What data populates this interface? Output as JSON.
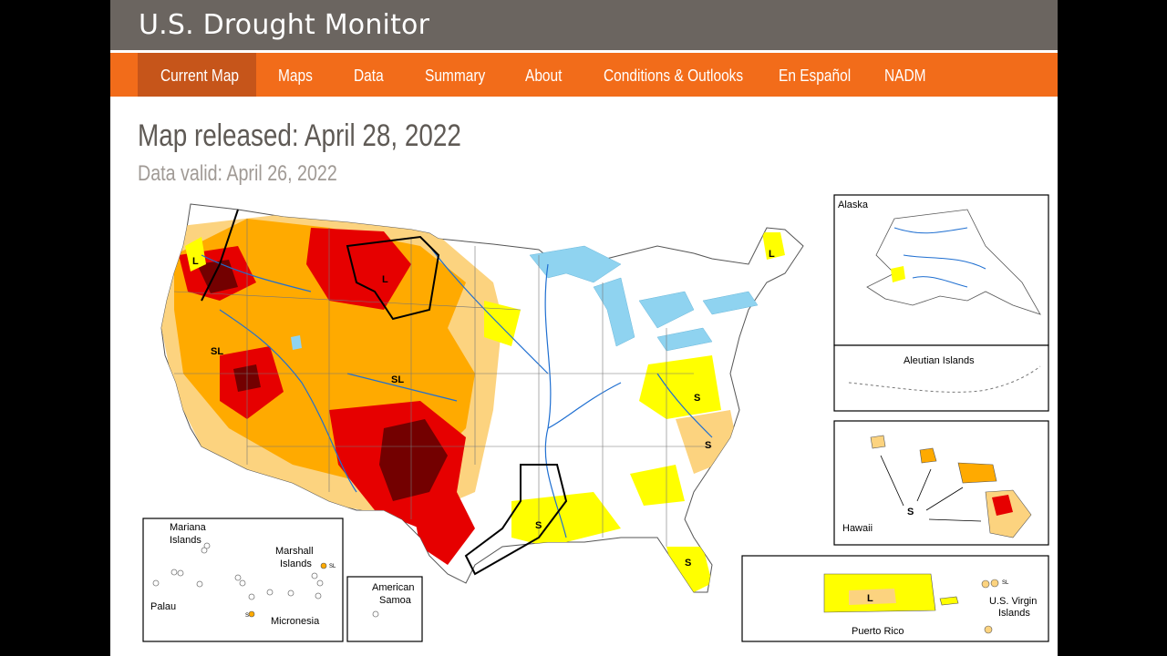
{
  "header": {
    "title": "U.S. Drought Monitor"
  },
  "nav": {
    "items": [
      "Current Map",
      "Maps",
      "Data",
      "Summary",
      "About",
      "Conditions & Outlooks",
      "En Español",
      "NADM"
    ],
    "active": "Current Map"
  },
  "main": {
    "released": "Map released: April 28, 2022",
    "valid": "Data valid: April 26, 2022"
  },
  "map": {
    "impact_labels": {
      "west": "SL",
      "central": "SL",
      "north": "L",
      "northwest": "L",
      "northeast": "L",
      "virginia": "S",
      "carolina": "S",
      "louisiana": "S",
      "florida": "S"
    },
    "insets": {
      "alaska": "Alaska",
      "aleutian": "Aleutian Islands",
      "hawaii": "Hawaii",
      "hawaii_impact": "S",
      "puerto_rico": "Puerto Rico",
      "puerto_rico_impact": "L",
      "usvi": [
        "U.S. Virgin",
        "Islands"
      ],
      "usvi_sl": "SL",
      "mariana": [
        "Mariana",
        "Islands"
      ],
      "marshall": [
        "Marshall",
        "Islands"
      ],
      "palau": "Palau",
      "micronesia": "Micronesia",
      "pacific_s": "S",
      "pacific_sl": "SL",
      "samoa": [
        "American",
        "Samoa"
      ]
    },
    "colors": {
      "D0": "#ffff00",
      "D1": "#fcd37f",
      "D2": "#ffaa00",
      "D3": "#e60000",
      "D4": "#730000",
      "water": "#8fd3f0",
      "river": "#1f6fd1"
    }
  }
}
